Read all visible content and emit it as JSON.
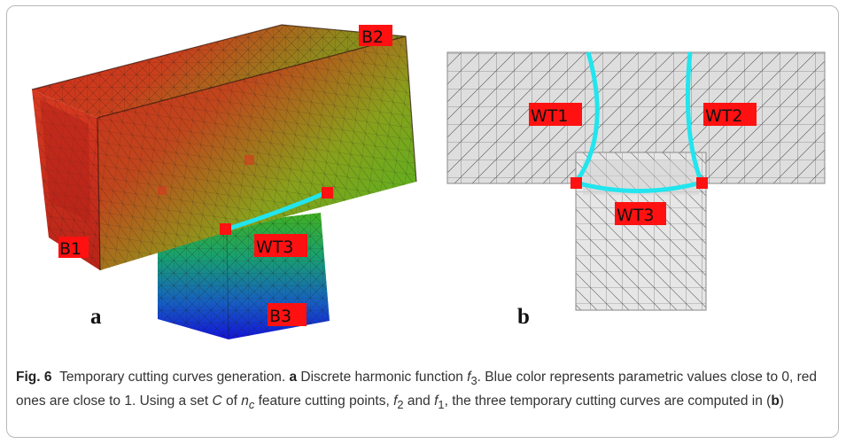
{
  "panel_a": {
    "letter": "a",
    "labels": {
      "b1": "B1",
      "b2": "B2",
      "b3": "B3",
      "wt3": "WT3"
    }
  },
  "panel_b": {
    "letter": "b",
    "labels": {
      "wt1": "WT1",
      "wt2": "WT2",
      "wt3": "WT3"
    }
  },
  "caption": {
    "fig_label": "Fig. 6",
    "seg1": "Temporary cutting curves generation. ",
    "a": "a",
    "seg2": " Discrete harmonic function ",
    "f3": "f",
    "f3_sub": "3",
    "seg3": ". Blue color represents parametric values close to 0, red ones are close to 1. Using a set ",
    "C": "C",
    "seg4": " of ",
    "nc": "n",
    "nc_sub": "c",
    "seg5": " feature cutting points, ",
    "f2": "f",
    "f2_sub": "2",
    "seg6": " and ",
    "f1": "f",
    "f1_sub": "1",
    "seg7": ", the three temporary cutting curves are computed in (",
    "b": "b",
    "seg8": ")"
  },
  "colors": {
    "tag_red": "#ff1111",
    "curve_cyan": "#22e5ee",
    "gradient_red": "#d8281c",
    "gradient_green": "#3fb020",
    "gradient_blue": "#1414d8",
    "mesh_gray": "#e2e2e2"
  }
}
